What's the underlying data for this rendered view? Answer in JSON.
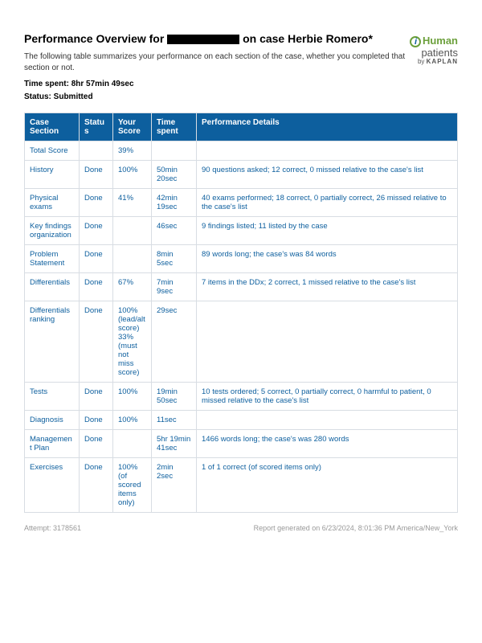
{
  "title_prefix": "Performance Overview for ",
  "title_suffix": " on case Herbie Romero*",
  "intro": "The following table summarizes your performance on each section of the case, whether you completed that section or not.",
  "time_spent_label": "Time spent: ",
  "time_spent_value": "8hr 57min 49sec",
  "status_label": "Status: ",
  "status_value": "Submitted",
  "logo": {
    "human": "Human",
    "patients": "patients",
    "by": "by ",
    "kaplan": "KAPLAN"
  },
  "columns": [
    "Case Section",
    "Status",
    "Your Score",
    "Time spent",
    "Performance Details"
  ],
  "rows": [
    {
      "section": "Total Score",
      "status": "",
      "score": "39%",
      "time": "",
      "details": ""
    },
    {
      "section": "History",
      "status": "Done",
      "score": "100%",
      "time": "50min 20sec",
      "details": "90 questions asked; 12 correct, 0 missed relative to the case's list"
    },
    {
      "section": "Physical exams",
      "status": "Done",
      "score": "41%",
      "time": "42min 19sec",
      "details": "40 exams performed; 18 correct, 0 partially correct, 26 missed relative to the case's list"
    },
    {
      "section": "Key findings organization",
      "status": "Done",
      "score": "",
      "time": "46sec",
      "details": "9 findings listed; 11 listed by the case"
    },
    {
      "section": "Problem Statement",
      "status": "Done",
      "score": "",
      "time": "8min 5sec",
      "details": "89 words long; the case's was 84 words"
    },
    {
      "section": "Differentials",
      "status": "Done",
      "score": "67%",
      "time": "7min 9sec",
      "details": "7 items in the DDx; 2 correct, 1 missed relative to the case's list"
    },
    {
      "section": "Differentials ranking",
      "status": "Done",
      "score": "100% (lead/alt score) 33% (must not miss score)",
      "time": "29sec",
      "details": ""
    },
    {
      "section": "Tests",
      "status": "Done",
      "score": "100%",
      "time": "19min 50sec",
      "details": "10 tests ordered; 5 correct, 0 partially correct, 0 harmful to patient, 0 missed relative to the case's list"
    },
    {
      "section": "Diagnosis",
      "status": "Done",
      "score": "100%",
      "time": "11sec",
      "details": ""
    },
    {
      "section": "Management Plan",
      "status": "Done",
      "score": "",
      "time": "5hr 19min 41sec",
      "details": "1466 words long; the case's was 280 words"
    },
    {
      "section": "Exercises",
      "status": "Done",
      "score": "100% (of scored items only)",
      "time": "2min 2sec",
      "details": "1 of 1 correct (of scored items only)"
    }
  ],
  "footer_left_label": "Attempt: ",
  "footer_left_value": "3178561",
  "footer_right_label": "Report generated on ",
  "footer_right_value": "6/23/2024, 8:01:36 PM America/New_York"
}
